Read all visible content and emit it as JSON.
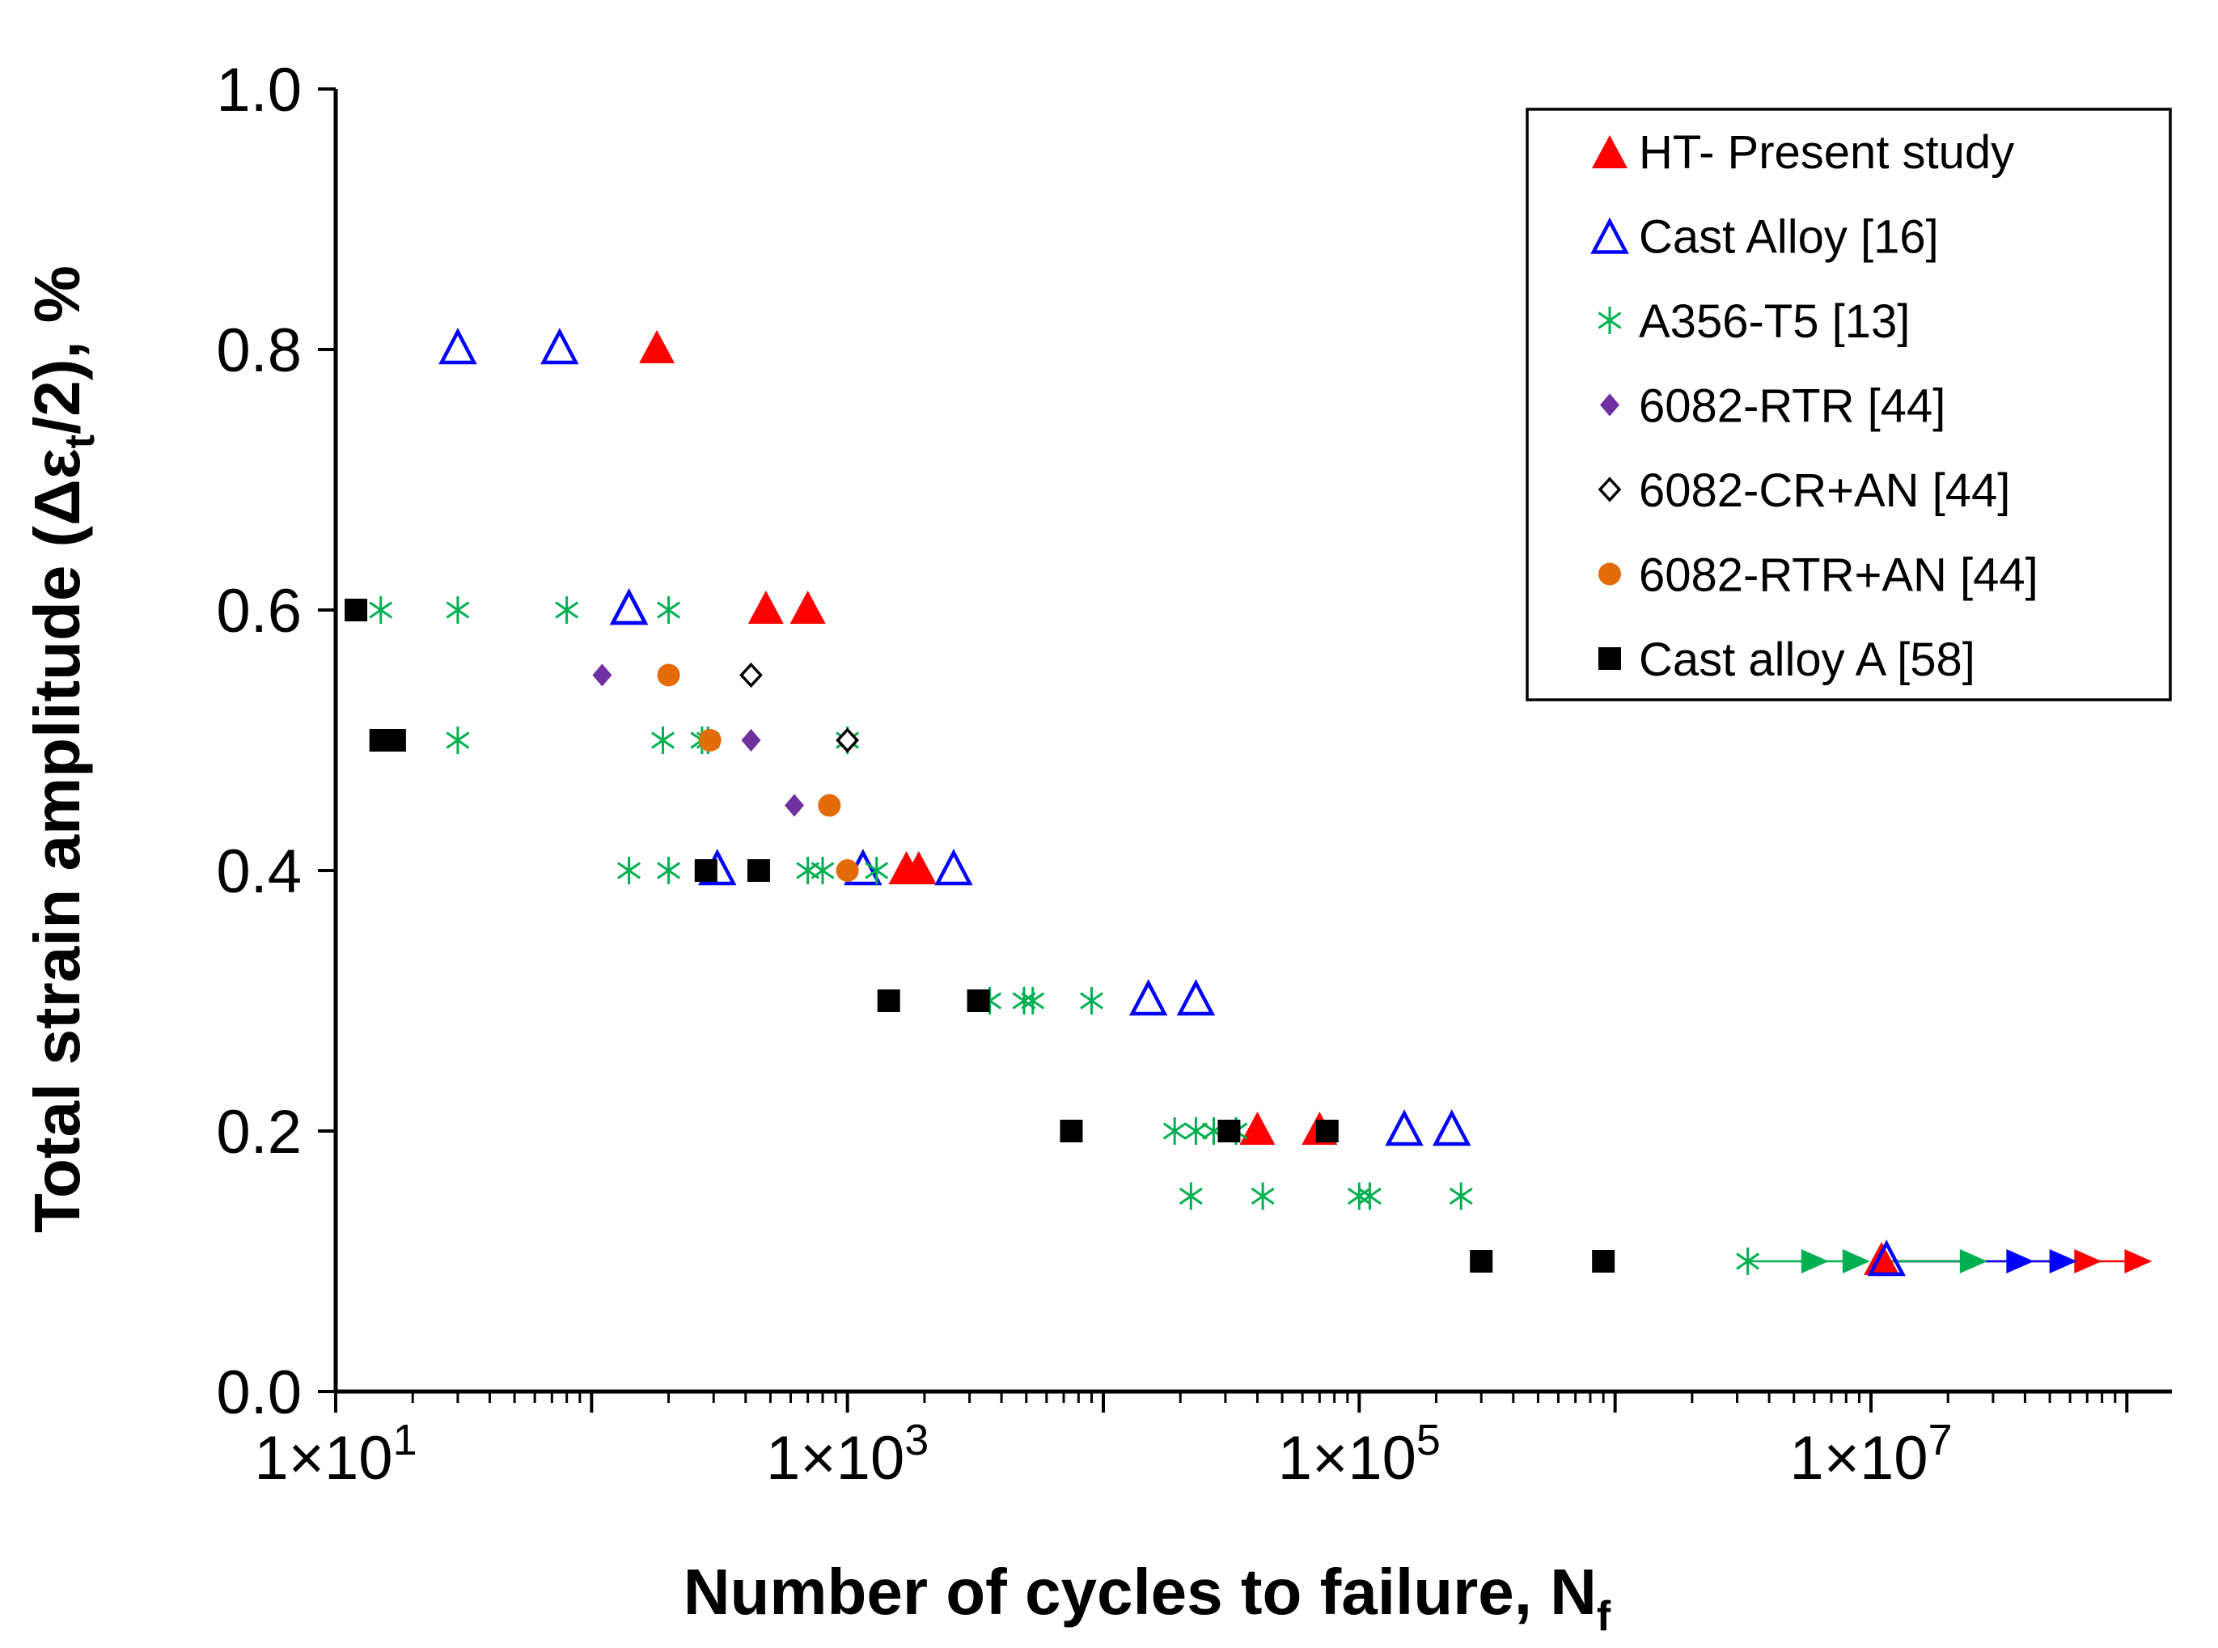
{
  "chart_data": {
    "type": "scatter",
    "title": "",
    "xscale": "log",
    "xlim": [
      10,
      150000000
    ],
    "ylim": [
      0,
      1.0
    ],
    "grid": false,
    "legend_position": "top-right",
    "xlabel": {
      "main": "Number of cycles to failure, N",
      "sub": "f"
    },
    "ylabel": {
      "pre": "Total strain amplitude (Δε",
      "sub": "t",
      "post": "/2), %"
    },
    "xticks": [
      {
        "value": 10,
        "base": "1×10",
        "exp": "1"
      },
      {
        "value": 1000,
        "base": "1×10",
        "exp": "3"
      },
      {
        "value": 100000,
        "base": "1×10",
        "exp": "5"
      },
      {
        "value": 10000000,
        "base": "1×10",
        "exp": "7"
      }
    ],
    "yticks": [
      "0.0",
      "0.2",
      "0.4",
      "0.6",
      "0.8",
      "1.0"
    ],
    "series": [
      {
        "name": "HT- Present study",
        "marker": "triangle-filled",
        "color": "#ff0000",
        "points": [
          [
            180,
            0.8
          ],
          [
            480,
            0.6
          ],
          [
            700,
            0.6
          ],
          [
            1700,
            0.4
          ],
          [
            1900,
            0.4
          ],
          [
            40000,
            0.2
          ],
          [
            70000,
            0.2
          ],
          [
            11000000,
            0.1
          ]
        ],
        "runouts": [
          {
            "x": 11000000,
            "y": 0.1,
            "arrows": [
              70000000,
              110000000
            ]
          }
        ]
      },
      {
        "name": "Cast Alloy [16]",
        "marker": "triangle-open",
        "color": "#0000ff",
        "points": [
          [
            30,
            0.8
          ],
          [
            75,
            0.8
          ],
          [
            140,
            0.6
          ],
          [
            140,
            0.6
          ],
          [
            310,
            0.4
          ],
          [
            1150,
            0.4
          ],
          [
            2600,
            0.4
          ],
          [
            15000,
            0.3
          ],
          [
            23000,
            0.3
          ],
          [
            150000,
            0.2
          ],
          [
            230000,
            0.2
          ],
          [
            11500000,
            0.1
          ]
        ],
        "runouts": [
          {
            "x": 11500000,
            "y": 0.1,
            "arrows": [
              38000000,
              56000000
            ]
          }
        ]
      },
      {
        "name": "A356-T5 [13]",
        "marker": "asterisk",
        "color": "#00b050",
        "points": [
          [
            15,
            0.6
          ],
          [
            30,
            0.6
          ],
          [
            80,
            0.6
          ],
          [
            200,
            0.6
          ],
          [
            30,
            0.5
          ],
          [
            190,
            0.5
          ],
          [
            270,
            0.5
          ],
          [
            285,
            0.5
          ],
          [
            1000,
            0.5
          ],
          [
            140,
            0.4
          ],
          [
            200,
            0.4
          ],
          [
            700,
            0.4
          ],
          [
            800,
            0.4
          ],
          [
            1300,
            0.4
          ],
          [
            3600,
            0.3
          ],
          [
            4900,
            0.3
          ],
          [
            5300,
            0.3
          ],
          [
            9000,
            0.3
          ],
          [
            19000,
            0.2
          ],
          [
            23000,
            0.2
          ],
          [
            27000,
            0.2
          ],
          [
            33000,
            0.2
          ],
          [
            22000,
            0.15
          ],
          [
            42000,
            0.15
          ],
          [
            100000,
            0.15
          ],
          [
            110000,
            0.15
          ],
          [
            250000,
            0.15
          ],
          [
            3300000,
            0.1
          ]
        ],
        "runouts": [
          {
            "x": 3300000,
            "y": 0.1,
            "arrows": [
              6000000,
              8700000
            ]
          },
          {
            "x": 11500000,
            "y": 0.1,
            "arrows": [
              25000000
            ]
          }
        ]
      },
      {
        "name": "6082-RTR [44]",
        "marker": "diamond-filled",
        "color": "#7030a0",
        "points": [
          [
            110,
            0.55
          ],
          [
            420,
            0.5
          ],
          [
            620,
            0.45
          ]
        ]
      },
      {
        "name": "6082-CR+AN [44]",
        "marker": "diamond-open",
        "color": "#000000",
        "points": [
          [
            420,
            0.55
          ],
          [
            1000,
            0.5
          ]
        ]
      },
      {
        "name": "6082-RTR+AN [44]",
        "marker": "circle-filled",
        "color": "#e36c09",
        "points": [
          [
            200,
            0.55
          ],
          [
            290,
            0.5
          ],
          [
            850,
            0.45
          ],
          [
            1000,
            0.4
          ]
        ]
      },
      {
        "name": "Cast alloy A [58]",
        "marker": "square-filled",
        "color": "#000000",
        "points": [
          [
            12,
            0.6
          ],
          [
            15,
            0.5
          ],
          [
            17,
            0.5
          ],
          [
            280,
            0.4
          ],
          [
            450,
            0.4
          ],
          [
            1450,
            0.3
          ],
          [
            3250,
            0.3
          ],
          [
            7500,
            0.2
          ],
          [
            31000,
            0.2
          ],
          [
            75000,
            0.2
          ],
          [
            300000,
            0.1
          ],
          [
            900000,
            0.1
          ]
        ]
      }
    ]
  }
}
